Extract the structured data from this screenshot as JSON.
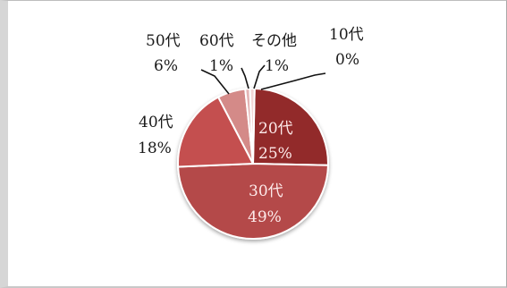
{
  "chart_data": {
    "type": "pie",
    "categories": [
      "10代",
      "20代",
      "30代",
      "40代",
      "50代",
      "60代",
      "その他"
    ],
    "values": [
      0,
      25,
      49,
      18,
      6,
      1,
      1
    ],
    "percent_labels": [
      "0%",
      "25%",
      "49%",
      "18%",
      "6%",
      "1%",
      "1%"
    ],
    "colors": [
      "#d08c8c",
      "#922b2b",
      "#b44848",
      "#c44f4f",
      "#d48a88",
      "#e3b4b4",
      "#f2d6d6"
    ],
    "legend": "none",
    "title": ""
  }
}
